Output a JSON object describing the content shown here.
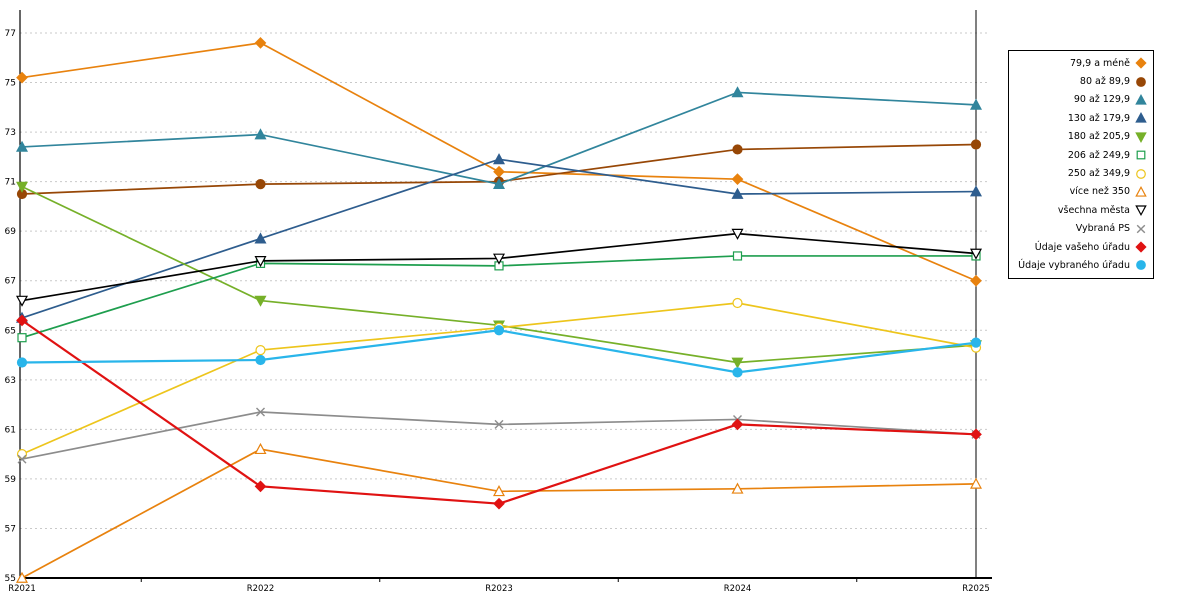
{
  "chart_data": {
    "type": "line",
    "title": "",
    "xlabel": "",
    "ylabel": "",
    "categories": [
      "R2021",
      "R2022",
      "R2023",
      "R2024",
      "R2025"
    ],
    "y_axis": {
      "min": 55,
      "max": 77,
      "tick_step": 2
    },
    "grid": true,
    "legend_position": "right",
    "series": [
      {
        "name": "79,9 a méně",
        "color": "#e8820e",
        "marker": "diamond",
        "filled": true,
        "values": [
          75.2,
          76.6,
          71.4,
          71.1,
          67.0
        ]
      },
      {
        "name": "80 až 89,9",
        "color": "#974706",
        "marker": "circle",
        "filled": true,
        "values": [
          70.5,
          70.9,
          71.0,
          72.3,
          72.5
        ]
      },
      {
        "name": "90 až 129,9",
        "color": "#31859c",
        "marker": "triangle-up",
        "filled": true,
        "values": [
          72.4,
          72.9,
          70.9,
          74.6,
          74.1
        ]
      },
      {
        "name": "130 až 179,9",
        "color": "#2e5d8e",
        "marker": "triangle-up",
        "filled": true,
        "values": [
          65.5,
          68.7,
          71.9,
          70.5,
          70.6
        ]
      },
      {
        "name": "180 až 205,9",
        "color": "#76b029",
        "marker": "triangle-down",
        "filled": true,
        "values": [
          70.8,
          66.2,
          65.2,
          63.7,
          64.4
        ]
      },
      {
        "name": "206 až 249,9",
        "color": "#1e9e4e",
        "marker": "square",
        "filled": false,
        "values": [
          64.7,
          67.7,
          67.6,
          68.0,
          68.0
        ]
      },
      {
        "name": "250 až 349,9",
        "color": "#edc51c",
        "marker": "circle",
        "filled": false,
        "values": [
          60.0,
          64.2,
          65.1,
          66.1,
          64.3
        ]
      },
      {
        "name": "více než 350",
        "color": "#e8820e",
        "marker": "triangle-up",
        "filled": false,
        "values": [
          55.0,
          60.2,
          58.5,
          58.6,
          58.8
        ]
      },
      {
        "name": "všechna města",
        "color": "#000000",
        "marker": "triangle-down",
        "filled": false,
        "values": [
          66.2,
          67.8,
          67.9,
          68.9,
          68.1
        ]
      },
      {
        "name": "Vybraná PS",
        "color": "#8c8c8c",
        "marker": "x",
        "filled": false,
        "values": [
          59.8,
          61.7,
          61.2,
          61.4,
          60.8
        ]
      },
      {
        "name": "Údaje vašeho úřadu",
        "color": "#e01212",
        "marker": "diamond",
        "filled": true,
        "values": [
          65.4,
          58.7,
          58.0,
          61.2,
          60.8
        ],
        "width": 2.2
      },
      {
        "name": "Údaje vybraného úřadu",
        "color": "#29b5ea",
        "marker": "circle",
        "filled": true,
        "values": [
          63.7,
          63.8,
          65.0,
          63.3,
          64.5
        ],
        "width": 2.2
      }
    ]
  }
}
